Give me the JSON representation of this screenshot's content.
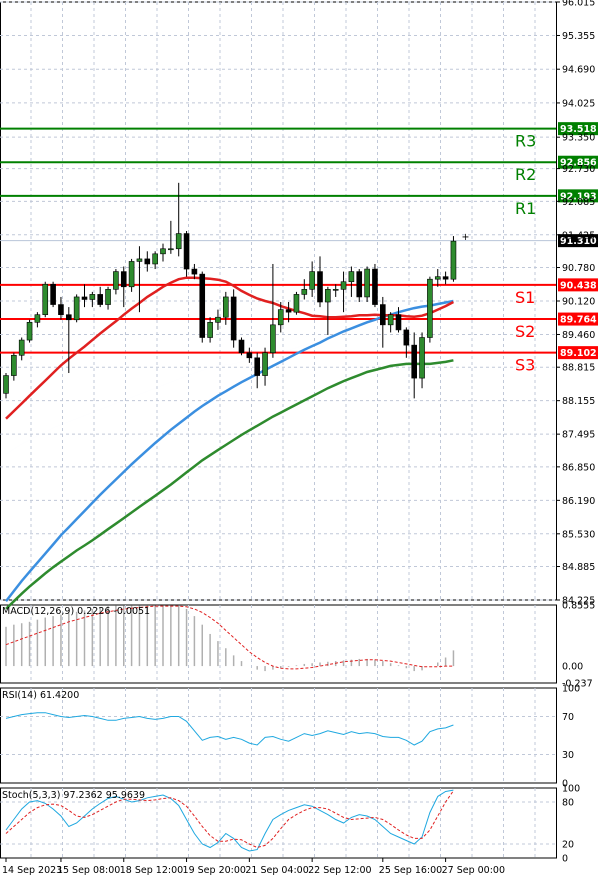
{
  "chart_data": {
    "type": "candlestick",
    "main": {
      "ylim": [
        84.225,
        96.015
      ],
      "price_ticks": [
        "96.015",
        "95.355",
        "94.690",
        "94.025",
        "93.350",
        "92.730",
        "92.085",
        "91.425",
        "90.780",
        "90.120",
        "89.460",
        "88.815",
        "88.155",
        "87.495",
        "86.850",
        "86.190",
        "85.530",
        "84.885",
        "84.225"
      ],
      "current_price": "91.310",
      "levels": [
        {
          "name": "R3",
          "value": 93.518,
          "tag": "93.518",
          "color": "#008000"
        },
        {
          "name": "R2",
          "value": 92.856,
          "tag": "92.856",
          "color": "#008000"
        },
        {
          "name": "R1",
          "value": 92.193,
          "tag": "92.193",
          "color": "#008000"
        },
        {
          "name": "S1",
          "value": 90.438,
          "tag": "90.438",
          "color": "#ff0000"
        },
        {
          "name": "S2",
          "value": 89.764,
          "tag": "89.764",
          "color": "#ff0000"
        },
        {
          "name": "S3",
          "value": 89.102,
          "tag": "89.102",
          "color": "#ff0000"
        }
      ],
      "candles": [
        [
          88.3,
          88.7,
          88.2,
          88.65
        ],
        [
          88.65,
          89.1,
          88.55,
          89.05
        ],
        [
          89.05,
          89.4,
          88.95,
          89.35
        ],
        [
          89.35,
          89.75,
          89.3,
          89.7
        ],
        [
          89.7,
          89.9,
          89.6,
          89.85
        ],
        [
          89.85,
          90.5,
          89.8,
          90.45
        ],
        [
          90.45,
          90.5,
          90.0,
          90.05
        ],
        [
          90.05,
          90.2,
          89.75,
          89.85
        ],
        [
          89.85,
          90.0,
          88.7,
          89.75
        ],
        [
          89.75,
          90.25,
          89.7,
          90.2
        ],
        [
          90.2,
          90.45,
          90.0,
          90.15
        ],
        [
          90.15,
          90.3,
          90.0,
          90.25
        ],
        [
          90.25,
          90.4,
          90.0,
          90.05
        ],
        [
          90.05,
          90.4,
          89.95,
          90.35
        ],
        [
          90.35,
          90.75,
          90.25,
          90.7
        ],
        [
          90.7,
          90.8,
          90.0,
          90.4
        ],
        [
          90.4,
          90.95,
          90.3,
          90.9
        ],
        [
          90.9,
          91.2,
          89.9,
          90.95
        ],
        [
          90.95,
          91.1,
          90.7,
          90.85
        ],
        [
          90.85,
          91.1,
          90.75,
          91.05
        ],
        [
          91.05,
          91.25,
          90.9,
          91.15
        ],
        [
          91.15,
          91.7,
          91.05,
          91.15
        ],
        [
          91.15,
          92.45,
          91.0,
          91.45
        ],
        [
          91.45,
          91.5,
          90.6,
          90.75
        ],
        [
          90.75,
          90.85,
          90.55,
          90.65
        ],
        [
          90.65,
          90.7,
          89.3,
          89.4
        ],
        [
          89.4,
          89.8,
          89.3,
          89.7
        ],
        [
          89.7,
          89.95,
          89.55,
          89.8
        ],
        [
          89.8,
          90.3,
          89.65,
          90.2
        ],
        [
          90.2,
          90.35,
          89.2,
          89.35
        ],
        [
          89.35,
          89.4,
          89.05,
          89.1
        ],
        [
          89.1,
          89.2,
          88.9,
          89.0
        ],
        [
          89.0,
          89.1,
          88.4,
          88.65
        ],
        [
          88.65,
          89.2,
          88.45,
          89.1
        ],
        [
          89.1,
          90.85,
          89.0,
          89.65
        ],
        [
          89.65,
          90.1,
          89.5,
          89.95
        ],
        [
          89.95,
          90.1,
          89.7,
          89.9
        ],
        [
          89.9,
          90.3,
          89.85,
          90.25
        ],
        [
          90.25,
          90.55,
          90.15,
          90.35
        ],
        [
          90.35,
          90.9,
          90.2,
          90.7
        ],
        [
          90.7,
          91.0,
          90.0,
          90.1
        ],
        [
          90.1,
          90.4,
          89.45,
          90.35
        ],
        [
          90.35,
          90.45,
          90.2,
          90.35
        ],
        [
          90.35,
          90.7,
          89.9,
          90.5
        ],
        [
          90.5,
          90.8,
          90.2,
          90.7
        ],
        [
          90.7,
          90.75,
          90.1,
          90.2
        ],
        [
          90.2,
          90.8,
          90.1,
          90.75
        ],
        [
          90.75,
          90.85,
          90.0,
          90.05
        ],
        [
          90.05,
          90.2,
          89.2,
          89.65
        ],
        [
          89.65,
          89.9,
          89.5,
          89.85
        ],
        [
          89.85,
          90.0,
          89.5,
          89.55
        ],
        [
          89.55,
          89.6,
          89.0,
          89.25
        ],
        [
          89.25,
          89.5,
          88.2,
          88.6
        ],
        [
          88.6,
          89.5,
          88.4,
          89.4
        ],
        [
          89.4,
          90.6,
          89.3,
          90.55
        ],
        [
          90.55,
          90.75,
          90.4,
          90.6
        ],
        [
          90.6,
          90.7,
          90.45,
          90.55
        ],
        [
          90.55,
          91.4,
          90.5,
          91.3
        ]
      ],
      "ma_fast": [
        87.8,
        87.95,
        88.1,
        88.25,
        88.4,
        88.55,
        88.7,
        88.85,
        88.98,
        89.1,
        89.22,
        89.35,
        89.48,
        89.6,
        89.72,
        89.85,
        89.97,
        90.08,
        90.2,
        90.3,
        90.4,
        90.48,
        90.55,
        90.58,
        90.58,
        90.57,
        90.56,
        90.54,
        90.5,
        90.42,
        90.32,
        90.24,
        90.17,
        90.12,
        90.08,
        90.02,
        89.97,
        89.92,
        89.88,
        89.83,
        89.82,
        89.8,
        89.8,
        89.81,
        89.82,
        89.84,
        89.84,
        89.85,
        89.84,
        89.84,
        89.84,
        89.82,
        89.81,
        89.83,
        89.88,
        89.95,
        90.02,
        90.1
      ],
      "ma_mid": [
        87.1,
        87.2,
        87.3,
        87.38,
        87.46,
        87.54,
        87.62,
        87.68,
        87.74,
        87.8,
        87.86,
        87.92,
        87.98,
        88.04,
        88.1,
        88.16,
        88.22,
        88.28,
        88.34,
        88.4,
        88.46,
        88.52,
        88.58,
        88.64,
        88.7,
        88.75,
        88.8,
        88.84,
        88.86,
        88.88,
        88.92,
        88.95,
        88.98,
        89.01,
        89.05,
        89.1,
        89.15,
        89.2,
        89.25,
        89.3,
        89.35,
        89.41,
        89.47,
        89.53,
        89.59,
        89.65,
        89.7,
        89.75,
        89.8,
        89.85,
        89.9,
        89.94,
        89.97,
        89.99,
        90.01,
        90.02,
        90.05,
        90.1
      ],
      "ma_slow": [
        84.2,
        84.4,
        84.6,
        84.78,
        84.96,
        85.14,
        85.32,
        85.5,
        85.66,
        85.82,
        85.98,
        86.14,
        86.3,
        86.45,
        86.6,
        86.75,
        86.9,
        87.04,
        87.18,
        87.32,
        87.45,
        87.58,
        87.7,
        87.82,
        87.94,
        88.05,
        88.15,
        88.25,
        88.34,
        88.43,
        88.52,
        88.6,
        88.68,
        88.76,
        88.84,
        88.92,
        89.0,
        89.08,
        89.16,
        89.23,
        89.3,
        89.38,
        89.45,
        89.52,
        89.58,
        89.64,
        89.7,
        89.75,
        89.81,
        89.85,
        89.9,
        89.94,
        89.98,
        90.01,
        90.03,
        90.06,
        90.09,
        90.12
      ],
      "ma_green": [
        84.05,
        84.2,
        84.35,
        84.49,
        84.62,
        84.75,
        84.87,
        84.98,
        85.09,
        85.2,
        85.3,
        85.4,
        85.51,
        85.62,
        85.73,
        85.84,
        85.95,
        86.06,
        86.17,
        86.28,
        86.39,
        86.5,
        86.62,
        86.74,
        86.86,
        86.98,
        87.08,
        87.18,
        87.28,
        87.38,
        87.48,
        87.57,
        87.66,
        87.75,
        87.84,
        87.92,
        88.0,
        88.08,
        88.16,
        88.24,
        88.32,
        88.4,
        88.47,
        88.54,
        88.6,
        88.66,
        88.72,
        88.76,
        88.8,
        88.84,
        88.86,
        88.88,
        88.88,
        88.88,
        88.88,
        88.9,
        88.92,
        88.95
      ]
    },
    "macd": {
      "label": "MACD(12,26,9) 0.2226 -0.0051",
      "ticks": [
        "0.8555",
        "0.00",
        "-0.237"
      ],
      "ylim": [
        -0.237,
        0.8555
      ],
      "hist": [
        0.55,
        0.58,
        0.6,
        0.62,
        0.65,
        0.68,
        0.7,
        0.72,
        0.74,
        0.76,
        0.78,
        0.8,
        0.82,
        0.84,
        0.85,
        0.85,
        0.85,
        0.85,
        0.85,
        0.85,
        0.85,
        0.85,
        0.85,
        0.8,
        0.7,
        0.58,
        0.45,
        0.35,
        0.25,
        0.15,
        0.07,
        0.0,
        -0.05,
        -0.07,
        -0.05,
        -0.03,
        -0.01,
        0.01,
        0.03,
        0.04,
        0.05,
        0.06,
        0.07,
        0.08,
        0.09,
        0.1,
        0.1,
        0.09,
        0.07,
        0.04,
        0.01,
        -0.03,
        -0.07,
        -0.06,
        0.0,
        0.05,
        0.12,
        0.22
      ],
      "signal": [
        0.3,
        0.34,
        0.38,
        0.42,
        0.46,
        0.5,
        0.54,
        0.58,
        0.62,
        0.65,
        0.68,
        0.71,
        0.74,
        0.76,
        0.78,
        0.8,
        0.81,
        0.82,
        0.83,
        0.84,
        0.84,
        0.84,
        0.84,
        0.83,
        0.8,
        0.75,
        0.68,
        0.6,
        0.5,
        0.4,
        0.3,
        0.2,
        0.12,
        0.05,
        0.0,
        -0.03,
        -0.04,
        -0.04,
        -0.03,
        -0.02,
        0.0,
        0.02,
        0.04,
        0.06,
        0.07,
        0.08,
        0.09,
        0.09,
        0.08,
        0.07,
        0.05,
        0.03,
        0.01,
        -0.01,
        -0.01,
        -0.01,
        0.0,
        0.0
      ]
    },
    "rsi": {
      "label": "RSI(14) 61.4200",
      "ticks": [
        "100",
        "70",
        "30",
        "0"
      ],
      "ylim": [
        0,
        100
      ],
      "values": [
        68,
        70,
        72,
        73,
        74,
        74,
        72,
        70,
        69,
        70,
        71,
        70,
        68,
        66,
        66,
        68,
        69,
        70,
        68,
        67,
        68,
        70,
        70,
        65,
        55,
        45,
        48,
        49,
        46,
        48,
        46,
        42,
        40,
        48,
        49,
        46,
        44,
        48,
        52,
        50,
        52,
        55,
        53,
        51,
        54,
        52,
        53,
        52,
        49,
        48,
        48,
        45,
        40,
        44,
        54,
        57,
        58,
        61
      ]
    },
    "stoch": {
      "label": "Stoch(5,3,3) 97.2362 95.9639",
      "ticks": [
        "100",
        "80",
        "20",
        "0"
      ],
      "ylim": [
        0,
        100
      ],
      "k": [
        40,
        55,
        70,
        80,
        82,
        78,
        70,
        60,
        45,
        50,
        60,
        70,
        78,
        85,
        88,
        84,
        80,
        82,
        86,
        88,
        90,
        85,
        75,
        55,
        35,
        20,
        15,
        22,
        35,
        28,
        15,
        10,
        12,
        35,
        55,
        62,
        68,
        72,
        76,
        74,
        68,
        62,
        55,
        50,
        58,
        62,
        60,
        55,
        45,
        35,
        30,
        25,
        20,
        30,
        65,
        88,
        95,
        97
      ],
      "d": [
        35,
        45,
        55,
        65,
        72,
        76,
        77,
        75,
        68,
        60,
        58,
        62,
        68,
        74,
        80,
        84,
        84,
        83,
        82,
        83,
        85,
        86,
        82,
        74,
        60,
        45,
        32,
        24,
        24,
        27,
        26,
        20,
        15,
        18,
        28,
        42,
        55,
        62,
        68,
        72,
        72,
        70,
        64,
        58,
        55,
        56,
        57,
        58,
        55,
        48,
        40,
        33,
        28,
        28,
        40,
        60,
        80,
        96
      ]
    },
    "x_labels": [
      {
        "i": 0,
        "text": "14 Sep 2023"
      },
      {
        "i": 7,
        "text": "15 Sep 08:00"
      },
      {
        "i": 15,
        "text": "18 Sep 12:00"
      },
      {
        "i": 23,
        "text": "19 Sep 20:00"
      },
      {
        "i": 31,
        "text": "21 Sep 04:00"
      },
      {
        "i": 39,
        "text": "22 Sep 12:00"
      },
      {
        "i": 48,
        "text": "25 Sep 16:00"
      },
      {
        "i": 56,
        "text": "27 Sep 00:00"
      }
    ]
  }
}
